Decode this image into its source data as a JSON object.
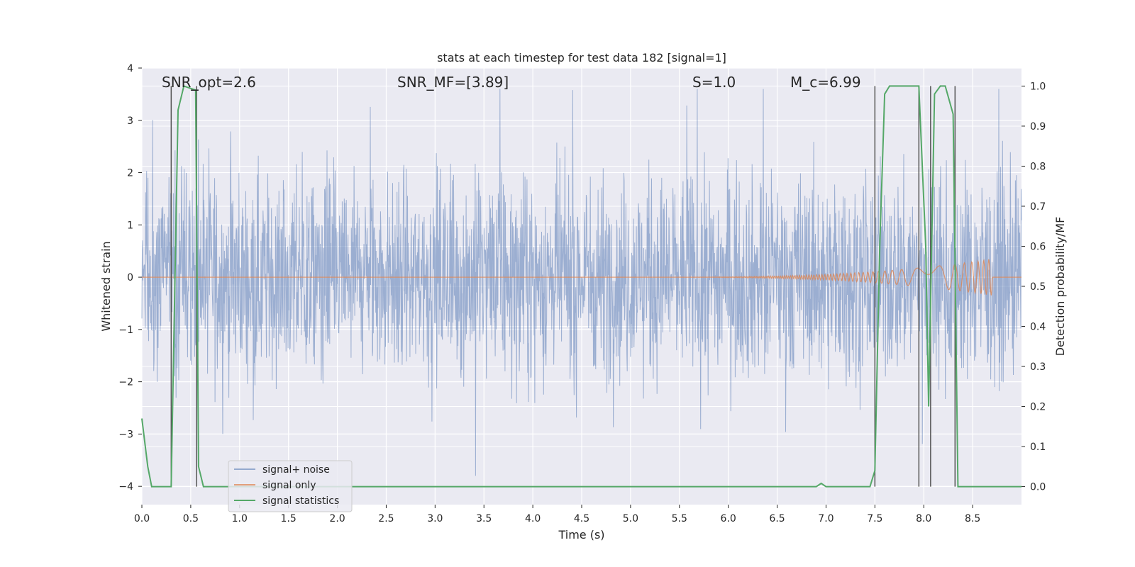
{
  "chart_data": {
    "type": "line",
    "title": "stats at each timestep for test data 182 [signal=1]",
    "xlabel": "Time (s)",
    "ylabel": "Whitened strain",
    "y2label": "Detection probability/MF",
    "xlim": [
      0.0,
      9.0
    ],
    "ylim": [
      -4.35,
      4.0
    ],
    "y2lim": [
      -0.045,
      1.045
    ],
    "x_ticks": [
      0.0,
      0.5,
      1.0,
      1.5,
      2.0,
      2.5,
      3.0,
      3.5,
      4.0,
      4.5,
      5.0,
      5.5,
      6.0,
      6.5,
      7.0,
      7.5,
      8.0,
      8.5
    ],
    "x_tick_labels": [
      "0.0",
      "0.5",
      "1.0",
      "1.5",
      "2.0",
      "2.5",
      "3.0",
      "3.5",
      "4.0",
      "4.5",
      "5.0",
      "5.5",
      "6.0",
      "6.5",
      "7.0",
      "7.5",
      "8.0",
      "8.5"
    ],
    "y_ticks": [
      -4,
      -3,
      -2,
      -1,
      0,
      1,
      2,
      3,
      4
    ],
    "y_tick_labels": [
      "−4",
      "−3",
      "−2",
      "−1",
      "0",
      "1",
      "2",
      "3",
      "4"
    ],
    "y2_ticks": [
      0.0,
      0.1,
      0.2,
      0.3,
      0.4,
      0.5,
      0.6,
      0.7,
      0.8,
      0.9,
      1.0
    ],
    "y2_tick_labels": [
      "0.0",
      "0.1",
      "0.2",
      "0.3",
      "0.4",
      "0.5",
      "0.6",
      "0.7",
      "0.8",
      "0.9",
      "1.0"
    ],
    "grid": true,
    "legend_position": "lower-left",
    "annotations": [
      {
        "text": "SNR_opt=2.6",
        "x": 0.2,
        "y": 3.7
      },
      {
        "text": "SNR_MF=[3.89]",
        "x": 2.6,
        "y": 3.7
      },
      {
        "text": "S=1.0",
        "x": 5.6,
        "y": 3.7
      },
      {
        "text": "M_c=6.99",
        "x": 6.6,
        "y": 3.7
      }
    ],
    "series": [
      {
        "name": "signal+ noise",
        "color": "#4c72b0",
        "axis": "left",
        "style": "noise",
        "typical_amplitude": 1.6,
        "peak_min": -3.8,
        "peak_max": 3.6
      },
      {
        "name": "signal only",
        "color": "#dd8452",
        "axis": "left",
        "style": "chirp",
        "chirp_start": 5.0,
        "chirp_end": 8.7,
        "peak_amplitude": 0.35
      },
      {
        "name": "signal statistics",
        "color": "#55a868",
        "axis": "right",
        "x": [
          0.0,
          0.06,
          0.1,
          0.3,
          0.37,
          0.43,
          0.55,
          0.58,
          0.63,
          0.7,
          6.9,
          6.95,
          7.0,
          7.45,
          7.5,
          7.55,
          7.6,
          7.65,
          7.75,
          7.95,
          8.02,
          8.05,
          8.11,
          8.17,
          8.22,
          8.3,
          8.35,
          8.4,
          8.9,
          9.0
        ],
        "y": [
          0.17,
          0.05,
          0.0,
          0.0,
          0.94,
          1.0,
          0.99,
          0.05,
          0.0,
          0.0,
          0.0,
          0.008,
          0.0,
          0.0,
          0.04,
          0.6,
          0.98,
          1.0,
          1.0,
          1.0,
          0.6,
          0.2,
          0.98,
          1.0,
          1.0,
          0.93,
          0.0,
          0.0,
          0.0,
          0.0
        ]
      }
    ],
    "vertical_markers": {
      "color": "#555555",
      "lines": [
        {
          "x": 0.3,
          "y2_range": [
            0.0,
            1.0
          ]
        },
        {
          "x": 0.56,
          "y2_range": [
            0.0,
            1.0
          ]
        },
        {
          "x": 7.5,
          "y2_range": [
            0.0,
            1.0
          ]
        },
        {
          "x": 7.95,
          "y2_range": [
            0.0,
            1.0
          ]
        },
        {
          "x": 8.07,
          "y2_range": [
            0.0,
            1.0
          ]
        },
        {
          "x": 8.32,
          "y2_range": [
            0.0,
            1.0
          ]
        }
      ],
      "caps": [
        {
          "x_from": 0.5,
          "x_to": 0.58,
          "y2": 0.99
        }
      ]
    }
  }
}
